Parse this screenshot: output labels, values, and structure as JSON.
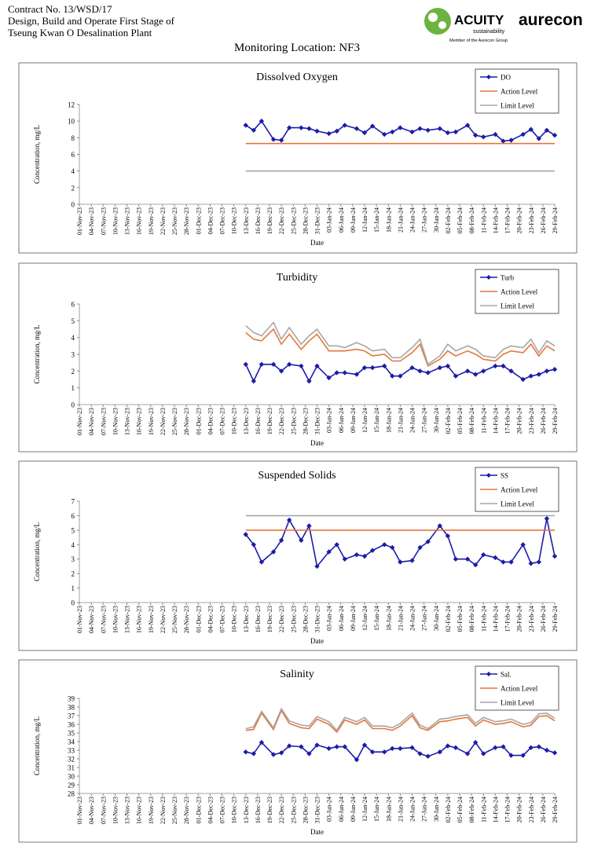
{
  "header": {
    "lines": [
      "Contract No. 13/WSD/17",
      "Design, Build and Operate First Stage of",
      "Tseung Kwan O Desalination Plant"
    ],
    "logos": {
      "acuity": "ACUITY",
      "acuity_sub": "sustainability",
      "acuity_member": "Member of the Aurecon Group",
      "aurecon": "aurecon"
    }
  },
  "title": "Monitoring Location: NF3",
  "chart_data": [
    {
      "type": "line",
      "title": "Dissolved Oxygen",
      "xlabel": "Date",
      "ylabel": "Concentration, mg/L",
      "legend": "upper right",
      "x": [
        "13-Dec-23",
        "15-Dec-23",
        "17-Dec-23",
        "20-Dec-23",
        "22-Dec-23",
        "24-Dec-23",
        "27-Dec-23",
        "29-Dec-23",
        "31-Dec-23",
        "03-Jan-24",
        "05-Jan-24",
        "07-Jan-24",
        "10-Jan-24",
        "12-Jan-24",
        "14-Jan-24",
        "17-Jan-24",
        "19-Jan-24",
        "21-Jan-24",
        "24-Jan-24",
        "26-Jan-24",
        "28-Jan-24",
        "31-Jan-24",
        "02-Feb-24",
        "04-Feb-24",
        "07-Feb-24",
        "09-Feb-24",
        "11-Feb-24",
        "14-Feb-24",
        "16-Feb-24",
        "18-Feb-24",
        "21-Feb-24",
        "23-Feb-24",
        "25-Feb-24",
        "27-Feb-24",
        "29-Feb-24"
      ],
      "xlim": [
        "01-Nov-23",
        "29-Feb-24"
      ],
      "xticks": [
        "01-Nov-23",
        "04-Nov-23",
        "07-Nov-23",
        "10-Nov-23",
        "13-Nov-23",
        "16-Nov-23",
        "19-Nov-23",
        "22-Nov-23",
        "25-Nov-23",
        "28-Nov-23",
        "01-Dec-23",
        "04-Dec-23",
        "07-Dec-23",
        "10-Dec-23",
        "13-Dec-23",
        "16-Dec-23",
        "19-Dec-23",
        "22-Dec-23",
        "25-Dec-23",
        "28-Dec-23",
        "31-Dec-23",
        "03-Jan-24",
        "06-Jan-24",
        "09-Jan-24",
        "12-Jan-24",
        "15-Jan-24",
        "18-Jan-24",
        "21-Jan-24",
        "24-Jan-24",
        "27-Jan-24",
        "30-Jan-24",
        "02-Feb-24",
        "05-Feb-24",
        "08-Feb-24",
        "11-Feb-24",
        "14-Feb-24",
        "17-Feb-24",
        "20-Feb-24",
        "23-Feb-24",
        "26-Feb-24",
        "29-Feb-24"
      ],
      "ylim": [
        0,
        12
      ],
      "yticks": [
        0,
        2,
        4,
        6,
        8,
        10,
        12
      ],
      "series": [
        {
          "name": "DO",
          "color": "#1c1ca8",
          "marker": "diamond",
          "values": [
            9.5,
            8.9,
            10.0,
            7.8,
            7.7,
            9.2,
            9.2,
            9.1,
            8.8,
            8.5,
            8.8,
            9.5,
            9.1,
            8.6,
            9.4,
            8.4,
            8.7,
            9.2,
            8.7,
            9.1,
            8.9,
            9.1,
            8.6,
            8.7,
            9.5,
            8.3,
            8.1,
            8.4,
            7.6,
            7.7,
            8.4,
            9.0,
            7.9,
            8.9,
            8.3
          ]
        },
        {
          "name": "Action Level",
          "color": "#e4763a",
          "values": [
            7.3,
            7.3,
            7.3,
            7.3,
            7.3,
            7.3,
            7.3,
            7.3,
            7.3,
            7.3,
            7.3,
            7.3,
            7.3,
            7.3,
            7.3,
            7.3,
            7.3,
            7.3,
            7.3,
            7.3,
            7.3,
            7.3,
            7.3,
            7.3,
            7.3,
            7.3,
            7.3,
            7.3,
            7.3,
            7.3,
            7.3,
            7.3,
            7.3,
            7.3,
            7.3
          ]
        },
        {
          "name": "Limit Level",
          "color": "#a6a6a6",
          "values": [
            4,
            4,
            4,
            4,
            4,
            4,
            4,
            4,
            4,
            4,
            4,
            4,
            4,
            4,
            4,
            4,
            4,
            4,
            4,
            4,
            4,
            4,
            4,
            4,
            4,
            4,
            4,
            4,
            4,
            4,
            4,
            4,
            4,
            4,
            4
          ]
        }
      ]
    },
    {
      "type": "line",
      "title": "Turbidity",
      "xlabel": "Date",
      "ylabel": "Concentration, mg/L",
      "legend": "upper right",
      "x": [
        "13-Dec-23",
        "15-Dec-23",
        "17-Dec-23",
        "20-Dec-23",
        "22-Dec-23",
        "24-Dec-23",
        "27-Dec-23",
        "29-Dec-23",
        "31-Dec-23",
        "03-Jan-24",
        "05-Jan-24",
        "07-Jan-24",
        "10-Jan-24",
        "12-Jan-24",
        "14-Jan-24",
        "17-Jan-24",
        "19-Jan-24",
        "21-Jan-24",
        "24-Jan-24",
        "26-Jan-24",
        "28-Jan-24",
        "31-Jan-24",
        "02-Feb-24",
        "04-Feb-24",
        "07-Feb-24",
        "09-Feb-24",
        "11-Feb-24",
        "14-Feb-24",
        "16-Feb-24",
        "18-Feb-24",
        "21-Feb-24",
        "23-Feb-24",
        "25-Feb-24",
        "27-Feb-24",
        "29-Feb-24"
      ],
      "xlim": [
        "01-Nov-23",
        "29-Feb-24"
      ],
      "xticks": [
        "01-Nov-23",
        "04-Nov-23",
        "07-Nov-23",
        "10-Nov-23",
        "13-Nov-23",
        "16-Nov-23",
        "19-Nov-23",
        "22-Nov-23",
        "25-Nov-23",
        "28-Nov-23",
        "01-Dec-23",
        "04-Dec-23",
        "07-Dec-23",
        "10-Dec-23",
        "13-Dec-23",
        "16-Dec-23",
        "19-Dec-23",
        "22-Dec-23",
        "25-Dec-23",
        "28-Dec-23",
        "31-Dec-23",
        "03-Jan-24",
        "06-Jan-24",
        "09-Jan-24",
        "12-Jan-24",
        "15-Jan-24",
        "18-Jan-24",
        "21-Jan-24",
        "24-Jan-24",
        "27-Jan-24",
        "30-Jan-24",
        "02-Feb-24",
        "05-Feb-24",
        "08-Feb-24",
        "11-Feb-24",
        "14-Feb-24",
        "17-Feb-24",
        "20-Feb-24",
        "23-Feb-24",
        "26-Feb-24",
        "29-Feb-24"
      ],
      "ylim": [
        0,
        6
      ],
      "yticks": [
        0,
        1,
        2,
        3,
        4,
        5,
        6
      ],
      "series": [
        {
          "name": "Turb",
          "color": "#1c1ca8",
          "marker": "diamond",
          "values": [
            2.4,
            1.4,
            2.4,
            2.4,
            2.0,
            2.4,
            2.3,
            1.4,
            2.3,
            1.6,
            1.9,
            1.9,
            1.8,
            2.2,
            2.2,
            2.3,
            1.7,
            1.7,
            2.2,
            2.0,
            1.9,
            2.2,
            2.3,
            1.7,
            2.0,
            1.8,
            2.0,
            2.3,
            2.3,
            2.0,
            1.5,
            1.7,
            1.8,
            2.0,
            2.1
          ]
        },
        {
          "name": "Action Level",
          "color": "#e4763a",
          "values": [
            4.3,
            3.9,
            3.8,
            4.5,
            3.6,
            4.2,
            3.3,
            3.8,
            4.2,
            3.2,
            3.2,
            3.2,
            3.3,
            3.2,
            2.9,
            3.0,
            2.6,
            2.6,
            3.1,
            3.6,
            2.3,
            2.7,
            3.2,
            2.9,
            3.2,
            3.0,
            2.7,
            2.6,
            3.0,
            3.2,
            3.1,
            3.6,
            2.9,
            3.5,
            3.2
          ]
        },
        {
          "name": "Limit Level",
          "color": "#a6a6a6",
          "values": [
            4.7,
            4.3,
            4.1,
            4.9,
            3.9,
            4.6,
            3.6,
            4.1,
            4.5,
            3.5,
            3.5,
            3.4,
            3.7,
            3.5,
            3.2,
            3.3,
            2.8,
            2.8,
            3.4,
            3.9,
            2.4,
            2.9,
            3.6,
            3.2,
            3.5,
            3.3,
            2.9,
            2.8,
            3.3,
            3.5,
            3.4,
            3.9,
            3.1,
            3.8,
            3.5
          ]
        }
      ]
    },
    {
      "type": "line",
      "title": "Suspended Solids",
      "xlabel": "Date",
      "ylabel": "Concentration, mg/L",
      "legend": "upper right",
      "x": [
        "13-Dec-23",
        "15-Dec-23",
        "17-Dec-23",
        "20-Dec-23",
        "22-Dec-23",
        "24-Dec-23",
        "27-Dec-23",
        "29-Dec-23",
        "31-Dec-23",
        "03-Jan-24",
        "05-Jan-24",
        "07-Jan-24",
        "10-Jan-24",
        "12-Jan-24",
        "14-Jan-24",
        "17-Jan-24",
        "19-Jan-24",
        "21-Jan-24",
        "24-Jan-24",
        "26-Jan-24",
        "28-Jan-24",
        "31-Jan-24",
        "02-Feb-24",
        "04-Feb-24",
        "07-Feb-24",
        "09-Feb-24",
        "11-Feb-24",
        "14-Feb-24",
        "16-Feb-24",
        "18-Feb-24",
        "21-Feb-24",
        "23-Feb-24",
        "25-Feb-24",
        "27-Feb-24",
        "29-Feb-24"
      ],
      "xlim": [
        "01-Nov-23",
        "29-Feb-24"
      ],
      "xticks": [
        "01-Nov-23",
        "04-Nov-23",
        "07-Nov-23",
        "10-Nov-23",
        "13-Nov-23",
        "16-Nov-23",
        "19-Nov-23",
        "22-Nov-23",
        "25-Nov-23",
        "28-Nov-23",
        "01-Dec-23",
        "04-Dec-23",
        "07-Dec-23",
        "10-Dec-23",
        "13-Dec-23",
        "16-Dec-23",
        "19-Dec-23",
        "22-Dec-23",
        "25-Dec-23",
        "28-Dec-23",
        "31-Dec-23",
        "03-Jan-24",
        "06-Jan-24",
        "09-Jan-24",
        "12-Jan-24",
        "15-Jan-24",
        "18-Jan-24",
        "21-Jan-24",
        "24-Jan-24",
        "27-Jan-24",
        "30-Jan-24",
        "02-Feb-24",
        "05-Feb-24",
        "08-Feb-24",
        "11-Feb-24",
        "14-Feb-24",
        "17-Feb-24",
        "20-Feb-24",
        "23-Feb-24",
        "26-Feb-24",
        "29-Feb-24"
      ],
      "ylim": [
        0,
        7
      ],
      "yticks": [
        0,
        1,
        2,
        3,
        4,
        5,
        6,
        7
      ],
      "series": [
        {
          "name": "SS",
          "color": "#1c1ca8",
          "marker": "diamond",
          "values": [
            4.7,
            4.0,
            2.8,
            3.5,
            4.3,
            5.7,
            4.3,
            5.3,
            2.5,
            3.5,
            4.0,
            3.0,
            3.3,
            3.2,
            3.6,
            4.0,
            3.8,
            2.8,
            2.9,
            3.8,
            4.2,
            5.3,
            4.6,
            3.0,
            3.0,
            2.6,
            3.3,
            3.1,
            2.8,
            2.8,
            4.0,
            2.7,
            2.8,
            5.8,
            3.2
          ]
        },
        {
          "name": "Action Level",
          "color": "#e4763a",
          "values": [
            5,
            5,
            5,
            5,
            5,
            5,
            5,
            5,
            5,
            5,
            5,
            5,
            5,
            5,
            5,
            5,
            5,
            5,
            5,
            5,
            5,
            5,
            5,
            5,
            5,
            5,
            5,
            5,
            5,
            5,
            5,
            5,
            5,
            5,
            5
          ]
        },
        {
          "name": "Limit Level",
          "color": "#a6a6a6",
          "values": [
            6,
            6,
            6,
            6,
            6,
            6,
            6,
            6,
            6,
            6,
            6,
            6,
            6,
            6,
            6,
            6,
            6,
            6,
            6,
            6,
            6,
            6,
            6,
            6,
            6,
            6,
            6,
            6,
            6,
            6,
            6,
            6,
            6,
            6,
            6
          ]
        }
      ]
    },
    {
      "type": "line",
      "title": "Salinity",
      "xlabel": "Date",
      "ylabel": "Concentration, mg/L",
      "legend": "upper right",
      "x": [
        "13-Dec-23",
        "15-Dec-23",
        "17-Dec-23",
        "20-Dec-23",
        "22-Dec-23",
        "24-Dec-23",
        "27-Dec-23",
        "29-Dec-23",
        "31-Dec-23",
        "03-Jan-24",
        "05-Jan-24",
        "07-Jan-24",
        "10-Jan-24",
        "12-Jan-24",
        "14-Jan-24",
        "17-Jan-24",
        "19-Jan-24",
        "21-Jan-24",
        "24-Jan-24",
        "26-Jan-24",
        "28-Jan-24",
        "31-Jan-24",
        "02-Feb-24",
        "04-Feb-24",
        "07-Feb-24",
        "09-Feb-24",
        "11-Feb-24",
        "14-Feb-24",
        "16-Feb-24",
        "18-Feb-24",
        "21-Feb-24",
        "23-Feb-24",
        "25-Feb-24",
        "27-Feb-24",
        "29-Feb-24"
      ],
      "xlim": [
        "01-Nov-23",
        "29-Feb-24"
      ],
      "xticks": [
        "01-Nov-23",
        "04-Nov-23",
        "07-Nov-23",
        "10-Nov-23",
        "13-Nov-23",
        "16-Nov-23",
        "19-Nov-23",
        "22-Nov-23",
        "25-Nov-23",
        "28-Nov-23",
        "01-Dec-23",
        "04-Dec-23",
        "07-Dec-23",
        "10-Dec-23",
        "13-Dec-23",
        "16-Dec-23",
        "19-Dec-23",
        "22-Dec-23",
        "25-Dec-23",
        "28-Dec-23",
        "31-Dec-23",
        "03-Jan-24",
        "06-Jan-24",
        "09-Jan-24",
        "12-Jan-24",
        "15-Jan-24",
        "18-Jan-24",
        "21-Jan-24",
        "24-Jan-24",
        "27-Jan-24",
        "30-Jan-24",
        "02-Feb-24",
        "05-Feb-24",
        "08-Feb-24",
        "11-Feb-24",
        "14-Feb-24",
        "17-Feb-24",
        "20-Feb-24",
        "23-Feb-24",
        "26-Feb-24",
        "29-Feb-24"
      ],
      "ylim": [
        28,
        39
      ],
      "yticks": [
        28,
        29,
        30,
        31,
        32,
        33,
        34,
        35,
        36,
        37,
        38,
        39
      ],
      "series": [
        {
          "name": "Sal.",
          "color": "#1c1ca8",
          "marker": "diamond",
          "values": [
            32.8,
            32.6,
            33.9,
            32.5,
            32.7,
            33.5,
            33.4,
            32.6,
            33.6,
            33.2,
            33.4,
            33.4,
            31.9,
            33.6,
            32.8,
            32.8,
            33.2,
            33.2,
            33.3,
            32.6,
            32.3,
            32.8,
            33.5,
            33.3,
            32.6,
            33.9,
            32.6,
            33.3,
            33.4,
            32.4,
            32.4,
            33.3,
            33.4,
            33.0,
            32.7
          ]
        },
        {
          "name": "Action Level",
          "color": "#e4763a",
          "values": [
            35.3,
            35.4,
            37.3,
            35.4,
            37.6,
            36.1,
            35.6,
            35.5,
            36.6,
            36.0,
            35.1,
            36.5,
            36.0,
            36.5,
            35.5,
            35.5,
            35.3,
            35.8,
            37.0,
            35.6,
            35.3,
            36.3,
            36.4,
            36.6,
            36.8,
            35.8,
            36.5,
            36.0,
            36.1,
            36.3,
            35.7,
            35.9,
            36.9,
            37.0,
            36.4
          ]
        },
        {
          "name": "Limit Level",
          "color": "#a6a6a6",
          "values": [
            35.5,
            35.7,
            37.5,
            35.6,
            37.8,
            36.4,
            35.9,
            35.8,
            36.9,
            36.3,
            35.3,
            36.8,
            36.3,
            36.8,
            35.8,
            35.8,
            35.6,
            36.1,
            37.3,
            35.9,
            35.5,
            36.6,
            36.7,
            36.9,
            37.1,
            36.1,
            36.8,
            36.3,
            36.4,
            36.6,
            36.0,
            36.2,
            37.2,
            37.3,
            36.7
          ]
        }
      ]
    }
  ]
}
